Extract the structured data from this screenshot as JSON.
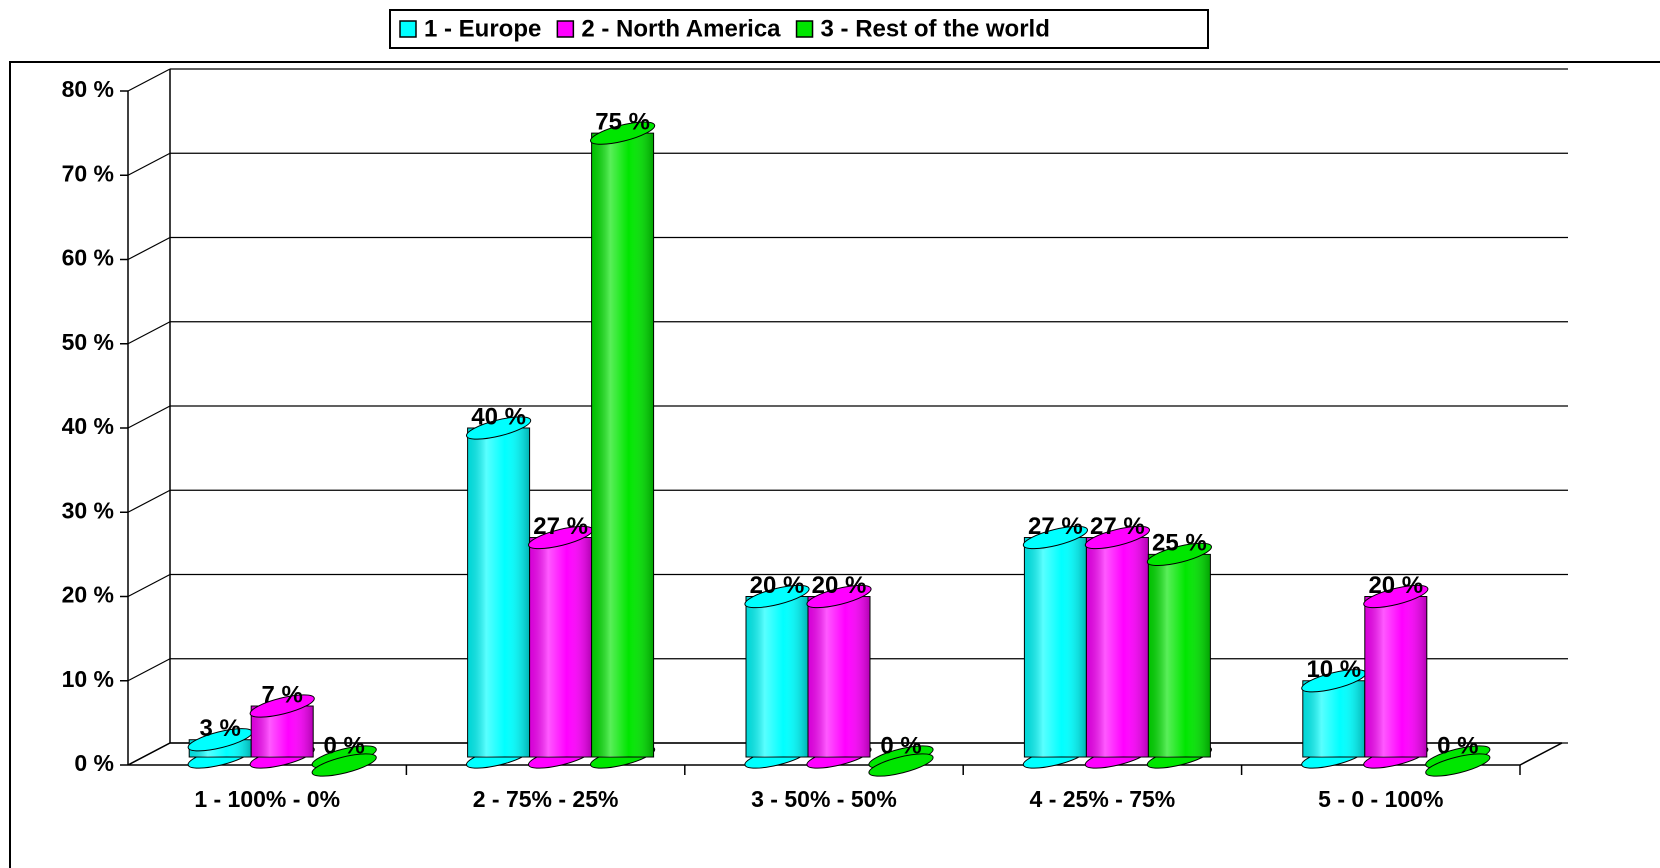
{
  "chart_data": {
    "type": "bar",
    "categories": [
      "1 - 100% - 0%",
      "2 - 75% - 25%",
      "3 - 50% - 50%",
      "4 - 25% - 75%",
      "5 - 0 - 100%"
    ],
    "series": [
      {
        "name": "1 - Europe",
        "color": "#00ffff",
        "values": [
          3,
          40,
          20,
          27,
          10
        ],
        "value_labels": [
          "3 %",
          "40 %",
          "20 %",
          "27 %",
          "10 %"
        ]
      },
      {
        "name": "2 - North America",
        "color": "#ff00ff",
        "values": [
          7,
          27,
          20,
          27,
          20
        ],
        "value_labels": [
          "7 %",
          "27 %",
          "20 %",
          "27 %",
          "20 %"
        ]
      },
      {
        "name": "3 - Rest of the world",
        "color": "#00e600",
        "values": [
          0,
          75,
          0,
          25,
          0
        ],
        "value_labels": [
          "0 %",
          "75 %",
          "0 %",
          "25 %",
          "0 %"
        ]
      }
    ],
    "ylim": [
      0,
      80
    ],
    "yticks": [
      {
        "value": 0,
        "label": "0 %"
      },
      {
        "value": 10,
        "label": "10 %"
      },
      {
        "value": 20,
        "label": "20 %"
      },
      {
        "value": 30,
        "label": "30 %"
      },
      {
        "value": 40,
        "label": "40 %"
      },
      {
        "value": 50,
        "label": "50 %"
      },
      {
        "value": 60,
        "label": "60 %"
      },
      {
        "value": 70,
        "label": "70 %"
      },
      {
        "value": 80,
        "label": "80 %"
      }
    ],
    "grid": true,
    "legend": "top"
  }
}
